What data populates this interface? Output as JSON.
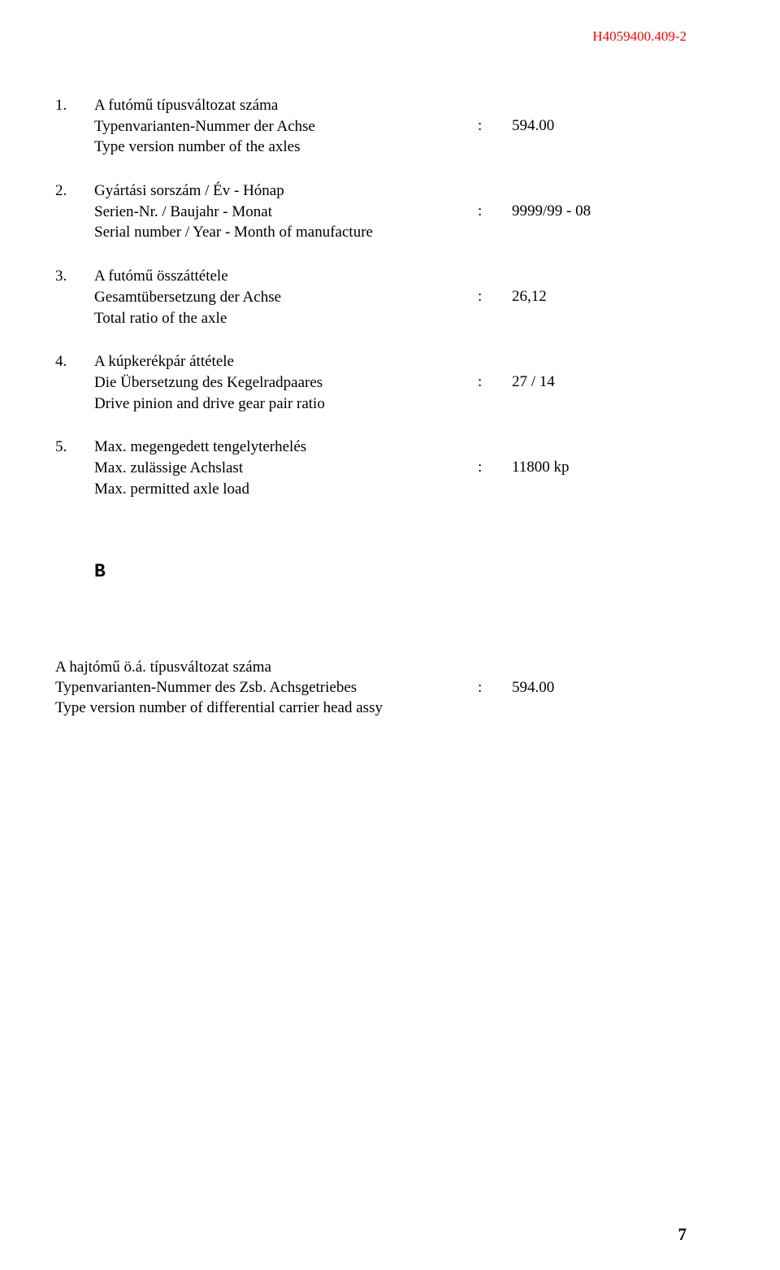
{
  "header": {
    "code": "H4059400.409-2",
    "color": "#ff0000"
  },
  "items": [
    {
      "num": "1.",
      "lines": [
        "A futómű típusváltozat száma",
        "Typenvarianten-Nummer der Achse",
        "Type version number of the axles"
      ],
      "value_row": 1,
      "value": "594.00"
    },
    {
      "num": "2.",
      "lines": [
        "Gyártási sorszám / Év - Hónap",
        "Serien-Nr. / Baujahr - Monat",
        "Serial number / Year - Month of manufacture"
      ],
      "value_row": 1,
      "value": "9999/99 - 08"
    },
    {
      "num": "3.",
      "lines": [
        "A futómű összáttétele",
        "Gesamtübersetzung der Achse",
        "Total ratio of the axle"
      ],
      "value_row": 1,
      "value": "26,12"
    },
    {
      "num": "4.",
      "lines": [
        "A kúpkerékpár áttétele",
        "Die Übersetzung des Kegelradpaares",
        "Drive pinion and drive gear pair ratio"
      ],
      "value_row": 1,
      "value": "27 / 14"
    },
    {
      "num": "5.",
      "lines": [
        "Max. megengedett tengelyterhelés",
        "Max. zulässige Achslast",
        "Max. permitted axle load"
      ],
      "value_row": 1,
      "value": "11800 kp"
    }
  ],
  "section_b": {
    "letter": "B",
    "lines": [
      "A hajtómű ö.á. típusváltozat száma",
      "Typenvarianten-Nummer des Zsb. Achsgetriebes",
      "Type version number of differential carrier head assy"
    ],
    "value_row": 1,
    "value": "594.00"
  },
  "page_number": "7"
}
